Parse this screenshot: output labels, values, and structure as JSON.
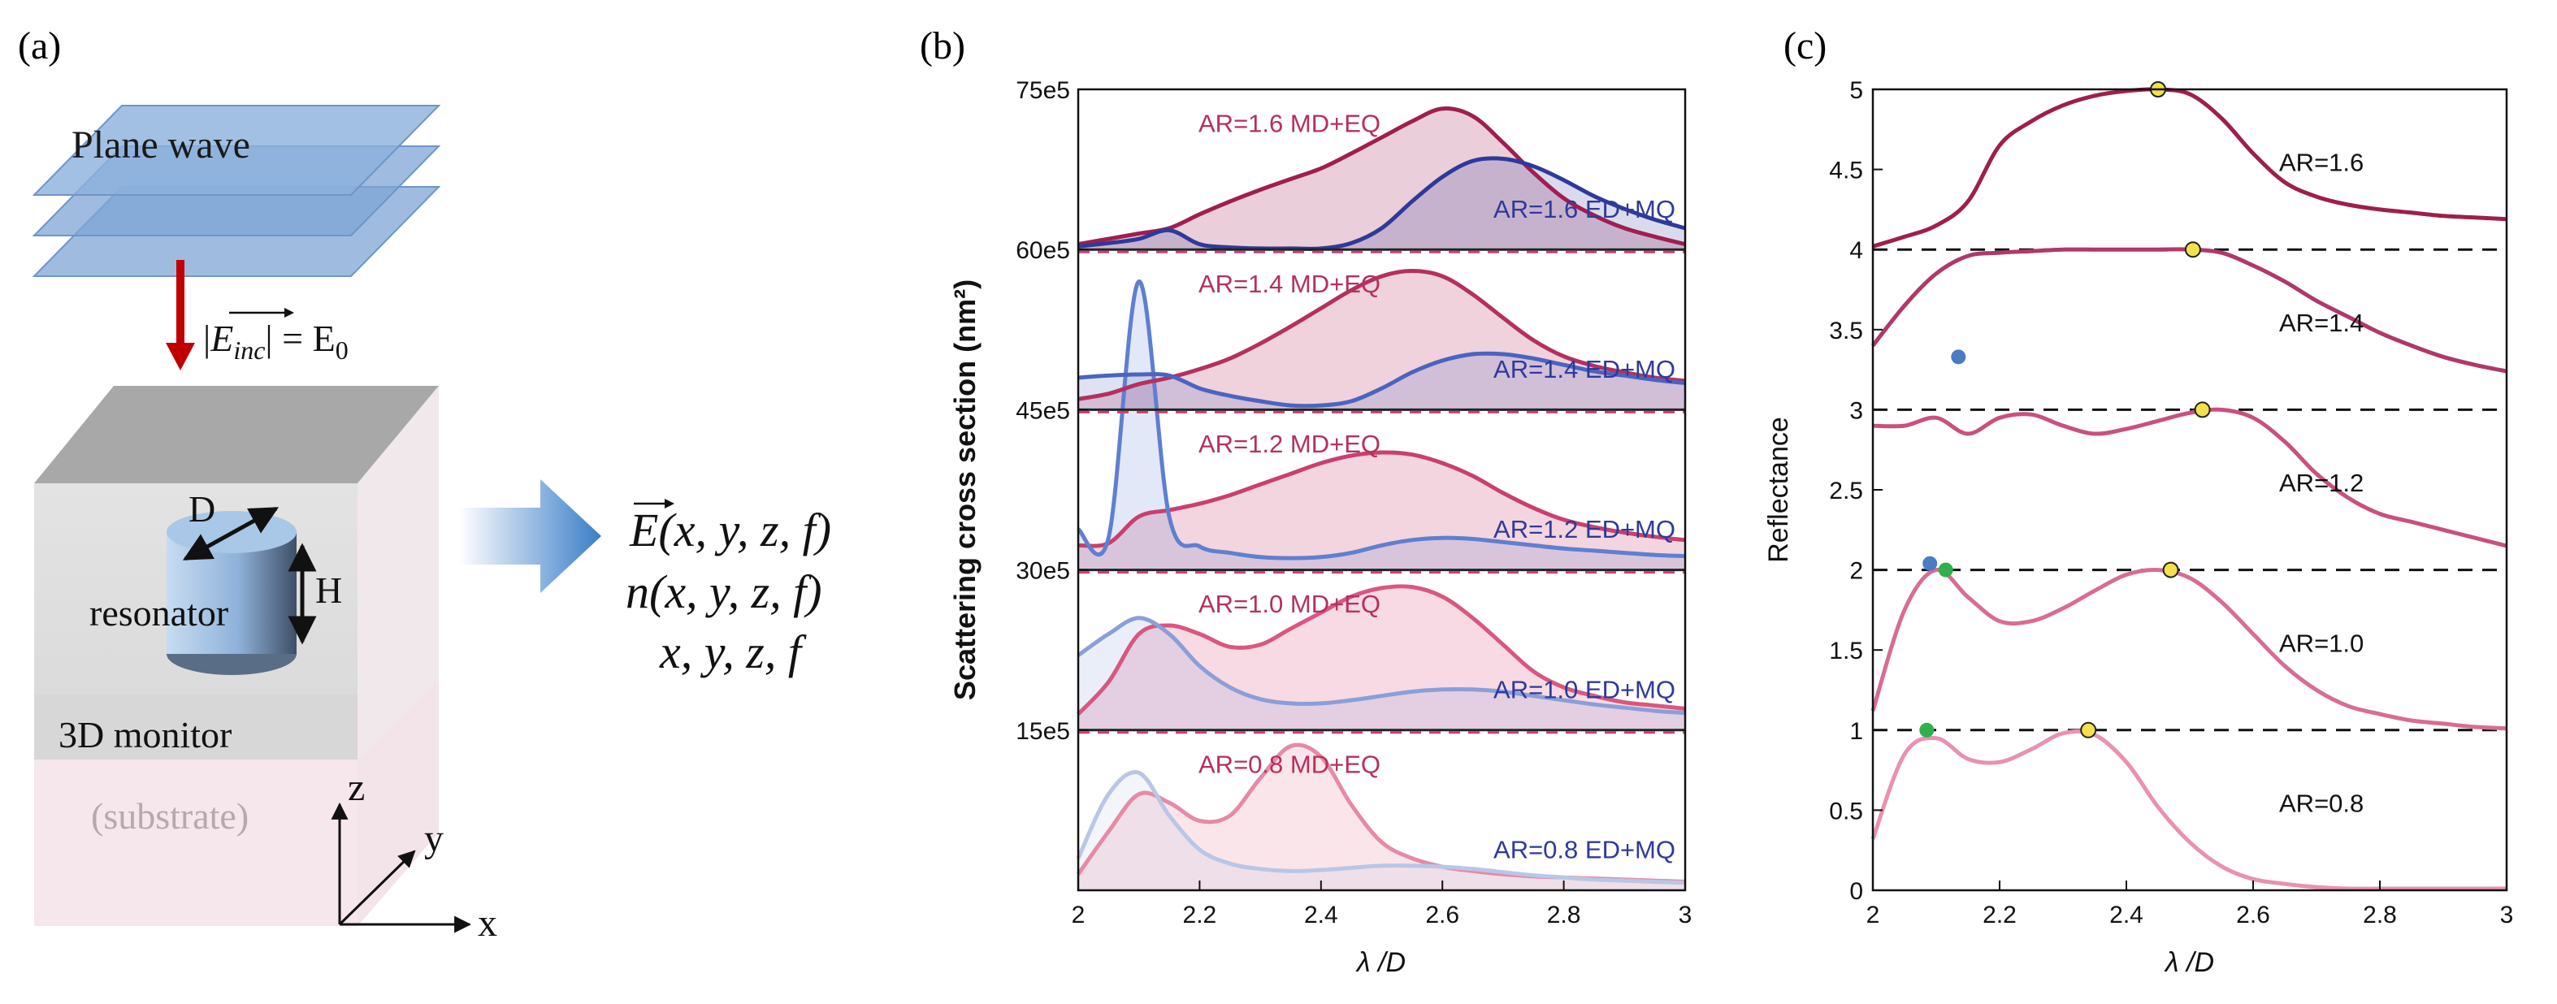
{
  "panel_a": {
    "label": "(a)",
    "plane_wave": "Plane wave",
    "incident": "|E_inc| = E",
    "incident_parts": {
      "abs_left": "|",
      "e": "E",
      "sub": "inc",
      "abs_right": "|",
      "eq": " = E",
      "sub0": "0"
    },
    "diameter": "D",
    "height": "H",
    "resonator": "resonator",
    "monitor": "3D monitor",
    "substrate": "(substrate)",
    "axes": {
      "z": "z",
      "y": "y",
      "x": "x"
    },
    "outputs": [
      "E(x, y, z, f)",
      "n(x, y, z, f)",
      "x, y, z, f"
    ],
    "colors": {
      "plane": "#7fa6d6",
      "arrow": "#c00000",
      "monitor_fill": "#e6e6e6",
      "substrate_fill": "#f5e6ec",
      "cylinder": "#9bbde0",
      "big_arrow": "#3a7dc8"
    }
  },
  "panel_b": {
    "label": "(b)",
    "ylabel": "Scattering cross section (nm²)",
    "xlabel": "λ /D",
    "xticks": [
      "2",
      "2.2",
      "2.4",
      "2.6",
      "2.8",
      "3"
    ],
    "yticks": [
      "15e5",
      "30e5",
      "45e5",
      "60e5",
      "75e5"
    ],
    "annotations": [
      {
        "ar": "0.8",
        "md": "AR=0.8 MD+EQ",
        "ed": "AR=0.8 ED+MQ"
      },
      {
        "ar": "1.0",
        "md": "AR=1.0 MD+EQ",
        "ed": "AR=1.0 ED+MQ"
      },
      {
        "ar": "1.2",
        "md": "AR=1.2 MD+EQ",
        "ed": "AR=1.2 ED+MQ"
      },
      {
        "ar": "1.4",
        "md": "AR=1.4 MD+EQ",
        "ed": "AR=1.4 ED+MQ"
      },
      {
        "ar": "1.6",
        "md": "AR=1.6 MD+EQ",
        "ed": "AR=1.6 ED+MQ"
      }
    ]
  },
  "panel_c": {
    "label": "(c)",
    "ylabel": "Reflectance",
    "xlabel": "λ /D",
    "xticks": [
      "2",
      "2.2",
      "2.4",
      "2.6",
      "2.8",
      "3"
    ],
    "yticks": [
      "0",
      "0.5",
      "1",
      "1.5",
      "2",
      "2.5",
      "3",
      "3.5",
      "4",
      "4.5",
      "5"
    ],
    "curve_labels": [
      "AR=0.8",
      "AR=1.0",
      "AR=1.2",
      "AR=1.4",
      "AR=1.6"
    ]
  },
  "chart_data": [
    {
      "type": "area",
      "panel": "(b)",
      "xlabel": "λ /D",
      "ylabel": "Scattering cross section (nm²)",
      "xlim": [
        2,
        3
      ],
      "ylim": [
        0,
        7500000.0
      ],
      "stacked_offsets": [
        0,
        1500000,
        3000000,
        4500000,
        6000000
      ],
      "x": [
        2.0,
        2.05,
        2.1,
        2.15,
        2.2,
        2.25,
        2.3,
        2.35,
        2.4,
        2.45,
        2.5,
        2.55,
        2.6,
        2.65,
        2.7,
        2.75,
        2.8,
        2.85,
        2.9,
        2.95,
        3.0
      ],
      "series": [
        {
          "name": "AR=0.8 MD+EQ",
          "offset": 0,
          "color": "#e68aa6",
          "values": [
            150000,
            550000,
            900000,
            820000,
            650000,
            700000,
            1050000,
            1350000,
            1250000,
            800000,
            450000,
            300000,
            220000,
            180000,
            150000,
            130000,
            120000,
            110000,
            100000,
            90000,
            80000
          ]
        },
        {
          "name": "AR=0.8 ED+MQ",
          "offset": 0,
          "color": "#b9c6e6",
          "values": [
            300000,
            900000,
            1100000,
            700000,
            380000,
            250000,
            200000,
            180000,
            190000,
            210000,
            230000,
            230000,
            220000,
            200000,
            170000,
            140000,
            120000,
            100000,
            90000,
            80000,
            70000
          ]
        },
        {
          "name": "AR=1.0 MD+EQ",
          "offset": 1500000,
          "color": "#d9577f",
          "values": [
            150000,
            450000,
            900000,
            980000,
            900000,
            780000,
            800000,
            950000,
            1100000,
            1250000,
            1330000,
            1340000,
            1250000,
            1050000,
            800000,
            550000,
            400000,
            320000,
            260000,
            230000,
            200000
          ]
        },
        {
          "name": "AR=1.0 ED+MQ",
          "offset": 1500000,
          "color": "#8a9fd8",
          "values": [
            700000,
            900000,
            1050000,
            900000,
            600000,
            400000,
            290000,
            250000,
            250000,
            280000,
            320000,
            360000,
            380000,
            380000,
            360000,
            320000,
            280000,
            240000,
            210000,
            180000,
            160000
          ]
        },
        {
          "name": "AR=1.2 MD+EQ",
          "offset": 3000000,
          "color": "#c9406e",
          "values": [
            230000,
            250000,
            500000,
            560000,
            620000,
            700000,
            800000,
            900000,
            1000000,
            1070000,
            1100000,
            1080000,
            1000000,
            880000,
            720000,
            580000,
            470000,
            400000,
            350000,
            310000,
            280000
          ]
        },
        {
          "name": "AR=1.2 ED+MQ",
          "offset": 3000000,
          "color": "#5f7fd0",
          "values": [
            380000,
            300000,
            2700000,
            500000,
            220000,
            160000,
            120000,
            110000,
            120000,
            160000,
            230000,
            280000,
            300000,
            290000,
            260000,
            230000,
            200000,
            180000,
            160000,
            140000,
            130000
          ]
        },
        {
          "name": "AR=1.4 MD+EQ",
          "offset": 4500000,
          "color": "#b5305e",
          "values": [
            100000,
            150000,
            240000,
            300000,
            380000,
            480000,
            620000,
            780000,
            950000,
            1120000,
            1250000,
            1300000,
            1250000,
            1080000,
            860000,
            650000,
            500000,
            410000,
            350000,
            300000,
            270000
          ]
        },
        {
          "name": "AR=1.4 ED+MQ",
          "offset": 4500000,
          "color": "#4a64c0",
          "values": [
            300000,
            320000,
            330000,
            320000,
            200000,
            130000,
            80000,
            40000,
            40000,
            80000,
            200000,
            350000,
            460000,
            520000,
            520000,
            480000,
            420000,
            360000,
            320000,
            280000,
            250000
          ]
        },
        {
          "name": "AR=1.6 MD+EQ",
          "offset": 6000000,
          "color": "#a01e50",
          "values": [
            50000,
            100000,
            150000,
            200000,
            330000,
            450000,
            560000,
            660000,
            760000,
            900000,
            1050000,
            1200000,
            1320000,
            1250000,
            1000000,
            720000,
            480000,
            320000,
            200000,
            120000,
            50000
          ]
        },
        {
          "name": "AR=1.6 ED+MQ",
          "offset": 6000000,
          "color": "#2e3a9a",
          "values": [
            30000,
            60000,
            100000,
            180000,
            50000,
            20000,
            10000,
            10000,
            10000,
            60000,
            200000,
            450000,
            680000,
            830000,
            850000,
            780000,
            650000,
            500000,
            380000,
            280000,
            200000
          ]
        }
      ]
    },
    {
      "type": "line",
      "panel": "(c)",
      "xlabel": "λ /D",
      "ylabel": "Reflectance",
      "xlim": [
        2,
        3
      ],
      "ylim": [
        0,
        5
      ],
      "x": [
        2.0,
        2.05,
        2.1,
        2.15,
        2.2,
        2.25,
        2.3,
        2.35,
        2.4,
        2.45,
        2.5,
        2.55,
        2.6,
        2.65,
        2.7,
        2.75,
        2.8,
        2.85,
        2.9,
        2.95,
        3.0
      ],
      "series": [
        {
          "name": "AR=0.8",
          "color": "#e991b2",
          "values": [
            0.32,
            0.85,
            0.95,
            0.82,
            0.8,
            0.88,
            0.98,
            0.97,
            0.8,
            0.52,
            0.3,
            0.15,
            0.07,
            0.04,
            0.02,
            0.01,
            0.01,
            0.01,
            0.01,
            0.01,
            0.01
          ]
        },
        {
          "name": "AR=1.0",
          "color": "#d86c94",
          "values": [
            1.12,
            1.75,
            2.0,
            1.83,
            1.68,
            1.68,
            1.76,
            1.87,
            1.97,
            2.0,
            1.95,
            1.8,
            1.6,
            1.4,
            1.25,
            1.15,
            1.1,
            1.06,
            1.04,
            1.02,
            1.01
          ]
        },
        {
          "name": "AR=1.2",
          "color": "#c9507f",
          "values": [
            2.9,
            2.9,
            2.95,
            2.85,
            2.95,
            2.97,
            2.9,
            2.85,
            2.88,
            2.93,
            2.98,
            3.0,
            2.95,
            2.8,
            2.6,
            2.45,
            2.35,
            2.3,
            2.25,
            2.2,
            2.15
          ]
        },
        {
          "name": "AR=1.4",
          "color": "#b0386a",
          "values": [
            3.4,
            3.65,
            3.85,
            3.96,
            3.98,
            3.99,
            4.0,
            4.0,
            4.0,
            4.0,
            4.0,
            3.98,
            3.9,
            3.8,
            3.68,
            3.58,
            3.48,
            3.4,
            3.33,
            3.28,
            3.24
          ]
        },
        {
          "name": "AR=1.6",
          "color": "#9e1f4c",
          "values": [
            4.02,
            4.08,
            4.15,
            4.3,
            4.65,
            4.8,
            4.9,
            4.96,
            4.99,
            5.0,
            4.97,
            4.82,
            4.6,
            4.42,
            4.33,
            4.28,
            4.25,
            4.23,
            4.21,
            4.2,
            4.19
          ]
        }
      ],
      "markers": [
        {
          "x": 2.45,
          "y": 5.0,
          "color": "#f4e04d"
        },
        {
          "x": 2.505,
          "y": 4.0,
          "color": "#f4e04d"
        },
        {
          "x": 2.52,
          "y": 3.0,
          "color": "#f4e04d"
        },
        {
          "x": 2.47,
          "y": 2.0,
          "color": "#f4e04d"
        },
        {
          "x": 2.34,
          "y": 1.0,
          "color": "#f4e04d"
        },
        {
          "x": 2.135,
          "y": 3.33,
          "color": "#4a7cc4"
        },
        {
          "x": 2.09,
          "y": 2.04,
          "color": "#4a7cc4"
        },
        {
          "x": 2.115,
          "y": 2.0,
          "color": "#2fb04a"
        },
        {
          "x": 2.085,
          "y": 1.0,
          "color": "#2fb04a"
        }
      ]
    }
  ]
}
